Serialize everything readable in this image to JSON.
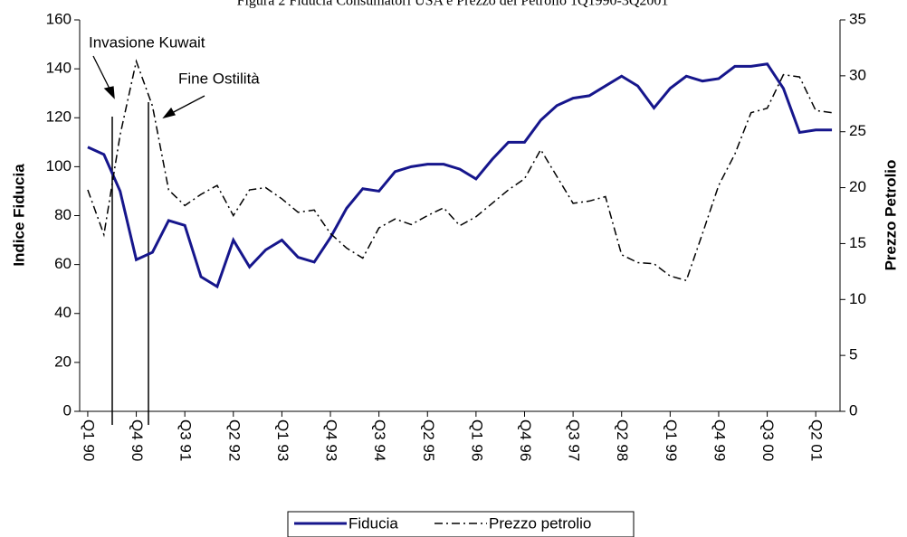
{
  "chart_data": {
    "type": "line",
    "title": "Figura 2 Fiducia Consumatori USA e Prezzo del Petrolio 1Q1990-3Q2001",
    "y_label": "Indice Fiducia",
    "y2_label": "Prezzo Petrolio",
    "annotations": [
      "Invasione Kuwait",
      "Fine Ostilità"
    ],
    "categories": [
      "Q1 90",
      null,
      null,
      "Q4 90",
      null,
      null,
      "Q3 91",
      null,
      null,
      "Q2 92",
      null,
      null,
      "Q1 93",
      null,
      null,
      "Q4 93",
      null,
      null,
      "Q3 94",
      null,
      null,
      "Q2 95",
      null,
      null,
      "Q1 96",
      null,
      null,
      "Q4 96",
      null,
      null,
      "Q3 97",
      null,
      null,
      "Q2 98",
      null,
      null,
      "Q1 99",
      null,
      null,
      "Q4 99",
      null,
      null,
      "Q3 00",
      null,
      null,
      "Q2 01",
      null
    ],
    "series": [
      {
        "name": "Fiducia",
        "color": "#16168c",
        "width": 3,
        "values": [
          108,
          105,
          90,
          62,
          65,
          78,
          76,
          55,
          51,
          70,
          59,
          66,
          70,
          63,
          61,
          71,
          83,
          91,
          90,
          98,
          100,
          101,
          101,
          99,
          95,
          103,
          110,
          110,
          119,
          125,
          128,
          129,
          133,
          137,
          133,
          124,
          132,
          137,
          135,
          136,
          141,
          141,
          142,
          132,
          114,
          115,
          115
        ]
      },
      {
        "name": "Prezzo petrolio",
        "color": "#000000",
        "width": 1.5,
        "dash": "9 4 2 4",
        "axis": "y2",
        "values": [
          19.8,
          15.8,
          24.7,
          31.3,
          27.3,
          19.8,
          18.4,
          19.4,
          20.2,
          17.5,
          19.8,
          20.0,
          19.0,
          17.8,
          18.0,
          15.9,
          14.6,
          13.7,
          16.4,
          17.2,
          16.7,
          17.5,
          18.2,
          16.6,
          17.4,
          18.6,
          19.8,
          20.8,
          23.4,
          21.0,
          18.6,
          18.8,
          19.2,
          14.0,
          13.3,
          13.2,
          12.1,
          11.7,
          15.9,
          20.2,
          23.0,
          26.7,
          27.1,
          30.1,
          29.9,
          26.9,
          26.7
        ]
      }
    ],
    "ylim": [
      0,
      160
    ],
    "yticks": [
      0,
      20,
      40,
      60,
      80,
      100,
      120,
      140,
      160
    ],
    "y2lim": [
      0,
      35
    ],
    "y2ticks": [
      0,
      5,
      10,
      15,
      20,
      25,
      30,
      35
    ],
    "grid": false,
    "legend": "bottom"
  }
}
